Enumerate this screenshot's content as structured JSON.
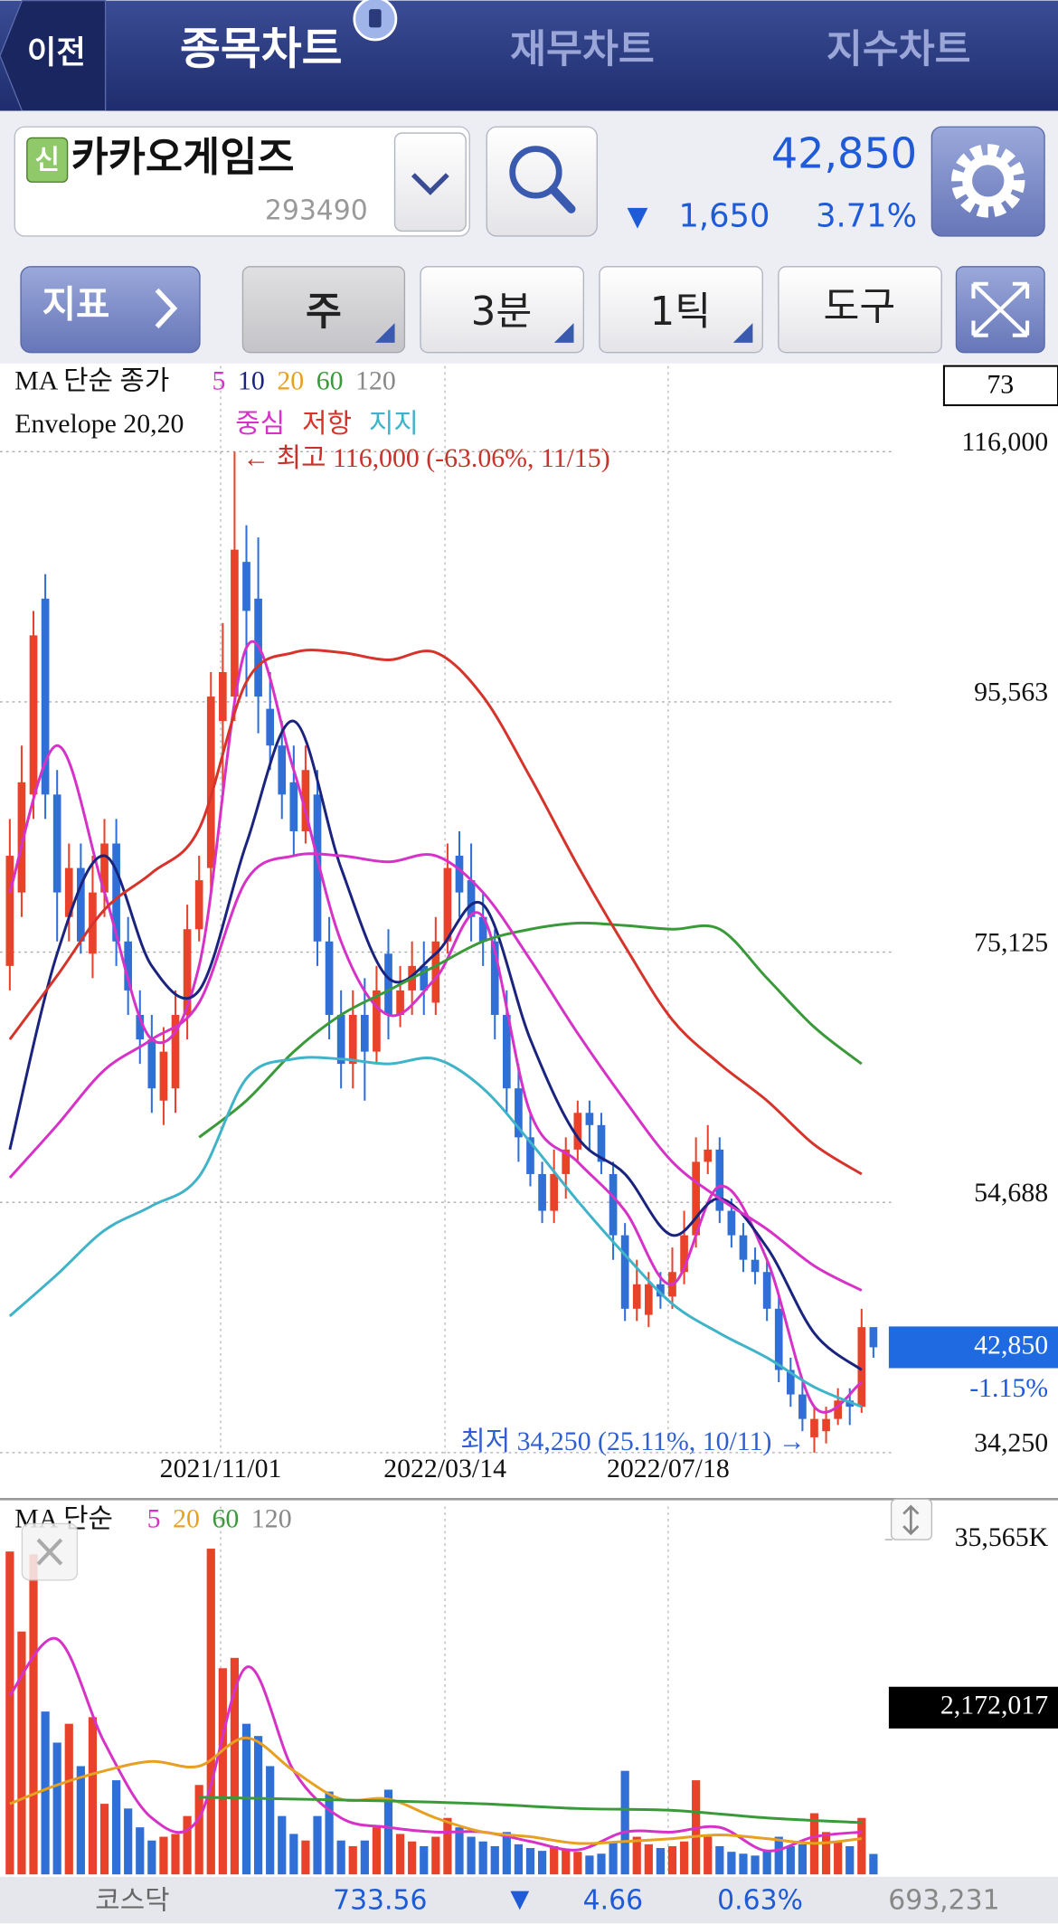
{
  "header": {
    "back": "이전",
    "tabs": [
      "종목차트",
      "재무차트",
      "지수차트"
    ]
  },
  "stock": {
    "badge": "신",
    "name": "카카오게임즈",
    "code": "293490",
    "price": "42,850",
    "change_arrow": "▼",
    "change": "1,650",
    "change_pct": "3.71%"
  },
  "toolbar": [
    "지표",
    "주",
    "3분",
    "1틱",
    "도구"
  ],
  "chart_data": [
    {
      "type": "candlestick",
      "legend_title": "MA 단순 종가",
      "ma_legend": [
        {
          "label": "5",
          "color": "#d632c8"
        },
        {
          "label": "10",
          "color": "#1a237e"
        },
        {
          "label": "20",
          "color": "#e8a020"
        },
        {
          "label": "60",
          "color": "#3a9a3a"
        },
        {
          "label": "120",
          "color": "#888888"
        }
      ],
      "envelope_title": "Envelope 20,20",
      "envelope_legend": [
        {
          "label": "중심",
          "color": "#d632c8"
        },
        {
          "label": "저항",
          "color": "#d6332a"
        },
        {
          "label": "지지",
          "color": "#3fb3c8"
        }
      ],
      "count_box": "73",
      "ylim": [
        30850,
        123000
      ],
      "yticks": [
        {
          "value": 116000,
          "label": "116,000"
        },
        {
          "value": 95563,
          "label": "95,563"
        },
        {
          "value": 75125,
          "label": "75,125"
        },
        {
          "value": 54688,
          "label": "54,688"
        },
        {
          "value": 34250,
          "label": "34,250"
        }
      ],
      "grid": true,
      "x_labels": [
        "2021/11/01",
        "2022/03/14",
        "2022/07/18"
      ],
      "annotation_high": "← 최고 116,000 (-63.06%, 11/15)",
      "annotation_low": "최저 34,250 (25.11%, 10/11) →",
      "price_tag": "42,850",
      "price_tag_change": "-1.15%",
      "up_color": "#e8432a",
      "down_color": "#2f6fd6",
      "open": [
        74000,
        80000,
        88000,
        104000,
        88000,
        78000,
        82000,
        75000,
        80000,
        84000,
        76000,
        70000,
        68000,
        63000,
        64000,
        70000,
        77000,
        82000,
        94000,
        96000,
        107000,
        104000,
        95000,
        92000,
        89000,
        85000,
        88000,
        76000,
        70000,
        66000,
        70000,
        67000,
        75000,
        70000,
        72000,
        74000,
        71000,
        76000,
        83000,
        81000,
        78000,
        76000,
        70000,
        64000,
        60000,
        57000,
        54000,
        57000,
        59000,
        62000,
        61000,
        57000,
        52000,
        46000,
        45500,
        48000,
        47000,
        49000,
        52000,
        58000,
        59000,
        54000,
        52000,
        50000,
        49000,
        46000,
        41000,
        39000,
        35500,
        36000,
        37000,
        38500,
        38000,
        44500
      ],
      "high": [
        86000,
        92000,
        103000,
        106000,
        90000,
        84000,
        84000,
        83000,
        86000,
        86000,
        78000,
        72000,
        70000,
        69000,
        72000,
        79000,
        83000,
        98000,
        102000,
        116000,
        110000,
        109000,
        98000,
        94000,
        92000,
        92000,
        90000,
        78000,
        72000,
        72000,
        73000,
        74000,
        77000,
        74000,
        76000,
        76000,
        78000,
        84000,
        85000,
        84000,
        80000,
        77000,
        72000,
        66000,
        62000,
        58000,
        59000,
        60000,
        63000,
        63000,
        62000,
        58000,
        53000,
        50000,
        49000,
        49000,
        51000,
        54000,
        60000,
        61000,
        60000,
        55000,
        53000,
        51000,
        50000,
        47000,
        42000,
        40000,
        38000,
        38000,
        39500,
        39500,
        46000,
        44200
      ],
      "low": [
        72000,
        78000,
        86000,
        86000,
        76000,
        76000,
        75000,
        73000,
        78000,
        74000,
        70000,
        66000,
        62000,
        61000,
        62000,
        68000,
        76000,
        80000,
        88000,
        94000,
        96000,
        93000,
        90000,
        86000,
        83000,
        84000,
        74000,
        68000,
        64000,
        64000,
        63000,
        66000,
        68000,
        69000,
        70000,
        70000,
        70000,
        75000,
        78000,
        76000,
        74000,
        68000,
        62000,
        58000,
        56000,
        53000,
        53000,
        55000,
        58000,
        59000,
        57000,
        50000,
        45000,
        45000,
        44500,
        46000,
        46000,
        48000,
        51000,
        57000,
        53000,
        51000,
        49000,
        48000,
        45000,
        40000,
        38000,
        36000,
        34250,
        35000,
        36500,
        36500,
        37500,
        42000
      ],
      "close": [
        83000,
        89000,
        101000,
        88000,
        80000,
        82000,
        76000,
        80000,
        84000,
        76000,
        72000,
        68000,
        64000,
        67000,
        70000,
        77000,
        81000,
        96000,
        98000,
        108000,
        103000,
        96000,
        92000,
        88000,
        85000,
        90000,
        76000,
        70000,
        66000,
        70000,
        67000,
        72000,
        70000,
        72000,
        74000,
        72000,
        76000,
        82000,
        80000,
        78000,
        76000,
        70000,
        64000,
        60000,
        57000,
        54000,
        57000,
        59000,
        62000,
        61000,
        58000,
        52000,
        46000,
        48000,
        48000,
        47000,
        49000,
        52000,
        58000,
        59000,
        54000,
        52000,
        50000,
        49000,
        46000,
        41000,
        39000,
        37000,
        37000,
        37000,
        38500,
        38000,
        44500,
        42850
      ],
      "series": [
        {
          "color": "#d632c8",
          "points": [
            0,
            4,
            8,
            12,
            16,
            20,
            24,
            28,
            32,
            36,
            40,
            44,
            48,
            52,
            56,
            60,
            64,
            68,
            72
          ],
          "values": [
            80000,
            92000,
            80000,
            68000,
            74000,
            100000,
            90000,
            76000,
            70000,
            73000,
            78000,
            62000,
            58000,
            54000,
            48000,
            56000,
            50000,
            38000,
            40000
          ]
        },
        {
          "color": "#1a237e",
          "points": [
            0,
            4,
            8,
            12,
            16,
            20,
            24,
            28,
            32,
            36,
            40,
            44,
            48,
            52,
            56,
            60,
            64,
            68,
            72
          ],
          "values": [
            59000,
            75000,
            83000,
            74000,
            72000,
            84000,
            94000,
            82000,
            73000,
            75000,
            79000,
            68000,
            60000,
            57000,
            52000,
            55000,
            51000,
            44000,
            41000
          ]
        },
        {
          "color": "#3a9a3a",
          "points": [
            16,
            20,
            24,
            28,
            32,
            36,
            40,
            44,
            48,
            52,
            56,
            60,
            64,
            68,
            72
          ],
          "values": [
            60000,
            63000,
            67000,
            70000,
            72000,
            74000,
            76000,
            77000,
            77500,
            77300,
            77000,
            77000,
            73000,
            69000,
            66000
          ]
        },
        {
          "color": "#d632c8",
          "points": [
            0,
            4,
            8,
            12,
            16,
            20,
            24,
            28,
            32,
            36,
            40,
            44,
            48,
            52,
            56,
            60,
            64,
            68,
            72
          ],
          "values": [
            56700,
            61000,
            65500,
            68000,
            71000,
            81000,
            83000,
            83000,
            82500,
            83000,
            80000,
            74500,
            68500,
            63000,
            58000,
            55000,
            52500,
            49500,
            47500
          ]
        },
        {
          "color": "#d6332a",
          "points": [
            0,
            4,
            8,
            12,
            16,
            20,
            24,
            28,
            32,
            36,
            40,
            44,
            48,
            52,
            56,
            60,
            64,
            68,
            72
          ],
          "values": [
            68000,
            73200,
            78600,
            81600,
            85200,
            97200,
            99600,
            99600,
            99000,
            99600,
            96000,
            89400,
            82200,
            75600,
            69600,
            66000,
            63000,
            59400,
            57000
          ]
        },
        {
          "color": "#3fb3c8",
          "points": [
            0,
            4,
            8,
            12,
            16,
            20,
            24,
            28,
            32,
            36,
            40,
            44,
            48,
            52,
            56,
            60,
            64,
            68,
            72
          ],
          "values": [
            45400,
            48800,
            52400,
            54400,
            56800,
            64800,
            66400,
            66400,
            66000,
            66400,
            64000,
            59600,
            54800,
            50400,
            46400,
            44000,
            42000,
            39600,
            38000
          ]
        }
      ]
    },
    {
      "type": "bar",
      "legend_title": "MA 단순",
      "ma_legend": [
        {
          "label": "5",
          "color": "#d632c8"
        },
        {
          "label": "20",
          "color": "#e8a020"
        },
        {
          "label": "60",
          "color": "#3a9a3a"
        },
        {
          "label": "120",
          "color": "#888888"
        }
      ],
      "ylim": [
        0,
        39080000
      ],
      "yticks": [
        {
          "value": 35565000,
          "label": "35,565K"
        }
      ],
      "current_label": "2,172,017",
      "values": [
        34300000,
        25800000,
        34000000,
        17300000,
        14000000,
        16000000,
        11500000,
        16700000,
        7500000,
        10000000,
        7000000,
        5000000,
        3600000,
        4000000,
        4300000,
        6200000,
        9500000,
        34600000,
        21900000,
        23000000,
        16000000,
        14700000,
        11500000,
        6200000,
        4300000,
        3600000,
        6200000,
        8800000,
        3600000,
        3000000,
        3600000,
        5000000,
        9000000,
        4300000,
        3500000,
        3000000,
        4000000,
        6000000,
        5000000,
        4000000,
        3500000,
        3000000,
        4500000,
        3200000,
        2800000,
        2500000,
        3000000,
        2600000,
        2400000,
        2000000,
        2200000,
        3500000,
        11000000,
        4000000,
        3200000,
        2800000,
        3000000,
        3500000,
        10000000,
        4000000,
        3000000,
        2400000,
        2200000,
        2000000,
        2500000,
        4000000,
        3000000,
        3200000,
        6500000,
        4500000,
        3500000,
        3000000,
        6000000,
        2172017
      ],
      "series": [
        {
          "color": "#d632c8",
          "points": [
            0,
            4,
            8,
            12,
            16,
            20,
            24,
            28,
            32,
            36,
            40,
            44,
            48,
            52,
            56,
            60,
            64,
            68,
            72
          ],
          "values": [
            19000000,
            25000000,
            14000000,
            6000000,
            6000000,
            22000000,
            11000000,
            6000000,
            5000000,
            4500000,
            4500000,
            3500000,
            2600000,
            4500000,
            4500000,
            5000000,
            2500000,
            4000000,
            4500000
          ]
        },
        {
          "color": "#e8a020",
          "points": [
            0,
            4,
            8,
            12,
            16,
            20,
            24,
            28,
            32,
            36,
            40,
            44,
            48,
            52,
            56,
            60,
            64,
            68,
            72
          ],
          "values": [
            7500000,
            9500000,
            11000000,
            12000000,
            11500000,
            14500000,
            11000000,
            8000000,
            8000000,
            6000000,
            4500000,
            4000000,
            3300000,
            3500000,
            3800000,
            4200000,
            3800000,
            3300000,
            3800000
          ]
        },
        {
          "color": "#3a9a3a",
          "points": [
            16,
            24,
            32,
            40,
            48,
            56,
            64,
            72
          ],
          "values": [
            8200000,
            8000000,
            7800000,
            7500000,
            7000000,
            6800000,
            6000000,
            5500000
          ]
        }
      ]
    }
  ],
  "footer": {
    "market": "코스닥",
    "index": "733.56",
    "arrow": "▼",
    "change": "4.66",
    "change_pct": "0.63%",
    "volume": "693,231"
  }
}
